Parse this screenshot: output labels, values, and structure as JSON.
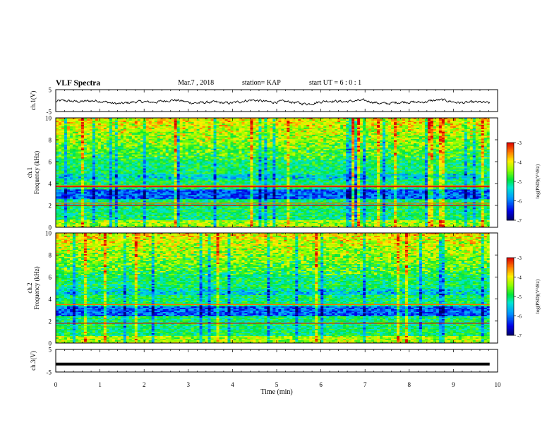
{
  "header": {
    "title": "VLF Spectra",
    "date": "Mar.7 , 2018",
    "station": "station= KAP",
    "start": "start UT = 6 : 0 : 1"
  },
  "chart_data": [
    {
      "type": "line",
      "panel": "ch1-waveform",
      "ylabel": "ch.1(V)",
      "ylim": [
        -5,
        5
      ],
      "yticks": [
        5,
        -5
      ],
      "x_range": [
        0,
        9.82
      ],
      "y_range_observed": [
        -2.5,
        1.5
      ],
      "grid": false
    },
    {
      "type": "heatmap",
      "panel": "ch1-spectrogram",
      "ylabel": "ch.1\nFrequency (kHz)",
      "ylim": [
        0,
        10
      ],
      "yticks": [
        0,
        2,
        4,
        6,
        8,
        10
      ],
      "colorbar": {
        "label": "log(PSD)(V²/Hz)",
        "min": -7,
        "max": -3,
        "ticks": [
          -3,
          -4,
          -5,
          -6,
          -7
        ]
      },
      "lines_khz": [
        2.0,
        2.2,
        3.7,
        3.8
      ],
      "noise_band_khz": [
        2.6,
        3.4
      ]
    },
    {
      "type": "heatmap",
      "panel": "ch2-spectrogram",
      "ylabel": "ch.2\nFrequency (kHz)",
      "ylim": [
        0,
        10
      ],
      "yticks": [
        0,
        2,
        4,
        6,
        8,
        10
      ],
      "colorbar": {
        "label": "log(PSD)(V²/Hz)",
        "min": -7,
        "max": -3,
        "ticks": [
          -3,
          -4,
          -5,
          -6,
          -7
        ]
      },
      "lines_khz": [
        1.8,
        3.5
      ],
      "noise_band_khz": [
        2.4,
        3.3
      ]
    },
    {
      "type": "line",
      "panel": "ch3-waveform",
      "ylabel": "ch.3(V)",
      "ylim": [
        -5,
        5
      ],
      "yticks": [
        5,
        -5
      ],
      "value": -1.5
    }
  ],
  "xaxis": {
    "label": "Time (min)",
    "ticks": [
      "0",
      "1",
      "2",
      "3",
      "4",
      "5",
      "6",
      "7",
      "8",
      "9",
      "10"
    ],
    "xlim": [
      0,
      10
    ]
  }
}
